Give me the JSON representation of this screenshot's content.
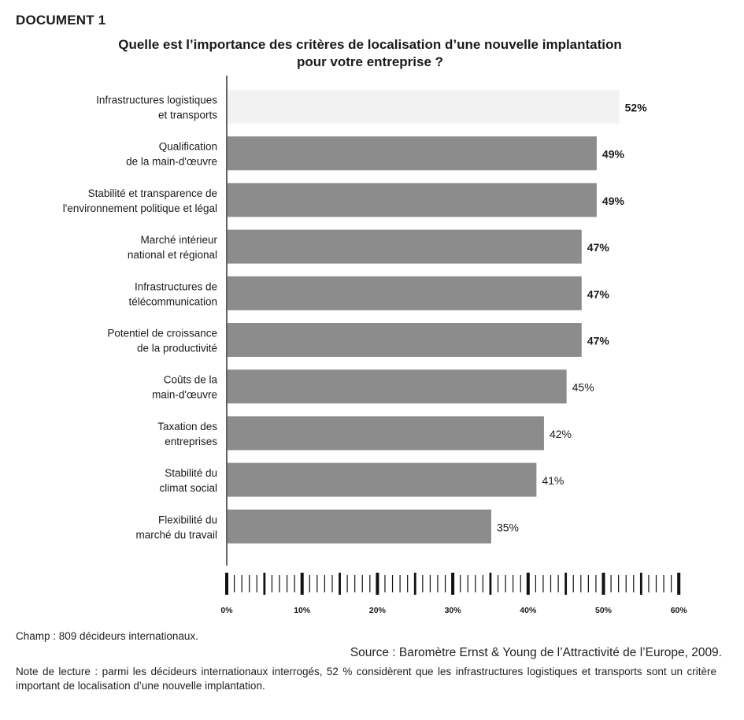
{
  "document_label": "DOCUMENT 1",
  "title_lines": [
    "Quelle est l’importance des critères de localisation d’une nouvelle implantation",
    "pour votre entreprise ?"
  ],
  "chart_data": {
    "type": "bar",
    "orientation": "horizontal",
    "title": "Quelle est l’importance des critères de localisation d’une nouvelle implantation pour votre entreprise ?",
    "categories": [
      [
        "Infrastructures logistiques",
        "et transports"
      ],
      [
        "Qualification",
        "de la main-d'œuvre"
      ],
      [
        "Stabilité et transparence de",
        "l'environnement politique et légal"
      ],
      [
        "Marché intérieur",
        "national et régional"
      ],
      [
        "Infrastructures de",
        "télécommunication"
      ],
      [
        "Potentiel de croissance",
        "de la productivité"
      ],
      [
        "Coûts de la",
        "main-d'œuvre"
      ],
      [
        "Taxation des",
        "entreprises"
      ],
      [
        "Stabilité du",
        "climat social"
      ],
      [
        "Flexibilité du",
        "marché du travail"
      ]
    ],
    "values": [
      52,
      49,
      49,
      47,
      47,
      47,
      45,
      42,
      41,
      35
    ],
    "value_labels": [
      "52%",
      "49%",
      "49%",
      "47%",
      "47%",
      "47%",
      "45%",
      "42%",
      "41%",
      "35%"
    ],
    "highlight_index": 0,
    "colors": {
      "highlight_bar": "#f2f2f2",
      "bar": "#8c8c8c",
      "axis": "#111111"
    },
    "x_ticks": [
      0,
      10,
      20,
      30,
      40,
      50,
      60
    ],
    "x_tick_labels": [
      "0%",
      "10%",
      "20%",
      "30%",
      "40%",
      "50%",
      "60%"
    ],
    "xlim": [
      0,
      60
    ],
    "xlabel": "",
    "ylabel": "",
    "grid": false,
    "legend": "none"
  },
  "notes": {
    "champ": "Champ : 809 décideurs internationaux.",
    "source": "Source : Baromètre Ernst & Young de l’Attractivité de l’Europe, 2009.",
    "lecture": "Note de lecture : parmi les décideurs internationaux interrogés, 52 % considèrent que les infrastructures logistiques et transports sont un critère important de localisation d’une nouvelle implantation."
  }
}
